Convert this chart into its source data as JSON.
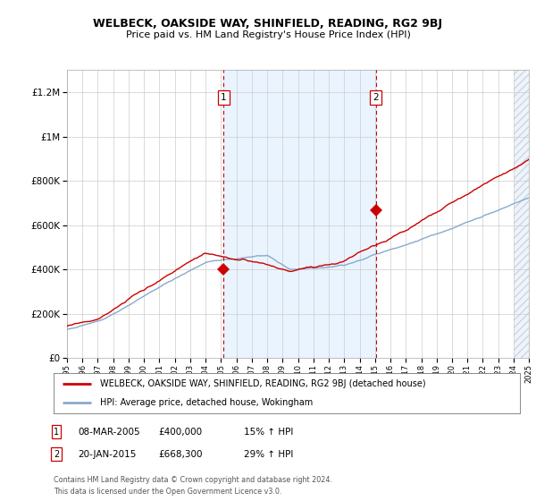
{
  "title": "WELBECK, OAKSIDE WAY, SHINFIELD, READING, RG2 9BJ",
  "subtitle": "Price paid vs. HM Land Registry's House Price Index (HPI)",
  "ylabel_ticks": [
    "£0",
    "£200K",
    "£400K",
    "£600K",
    "£800K",
    "£1M",
    "£1.2M"
  ],
  "ytick_values": [
    0,
    200000,
    400000,
    600000,
    800000,
    1000000,
    1200000
  ],
  "ylim": [
    0,
    1300000
  ],
  "x_start_year": 1995,
  "x_end_year": 2025,
  "sale1_year": 2005.17,
  "sale1_price": 400000,
  "sale1_label": "1",
  "sale1_date": "08-MAR-2005",
  "sale1_text": "£400,000",
  "sale1_hpi": "15% ↑ HPI",
  "sale2_year": 2015.05,
  "sale2_price": 668300,
  "sale2_label": "2",
  "sale2_date": "20-JAN-2015",
  "sale2_text": "£668,300",
  "sale2_hpi": "29% ↑ HPI",
  "legend_line1": "WELBECK, OAKSIDE WAY, SHINFIELD, READING, RG2 9BJ (detached house)",
  "legend_line2": "HPI: Average price, detached house, Wokingham",
  "footer1": "Contains HM Land Registry data © Crown copyright and database right 2024.",
  "footer2": "This data is licensed under the Open Government Licence v3.0.",
  "line_color_red": "#cc0000",
  "line_color_blue": "#88aacc",
  "fill_color": "#ddeeff",
  "bg_color": "#ffffff",
  "plot_bg": "#ffffff",
  "num_points": 360
}
